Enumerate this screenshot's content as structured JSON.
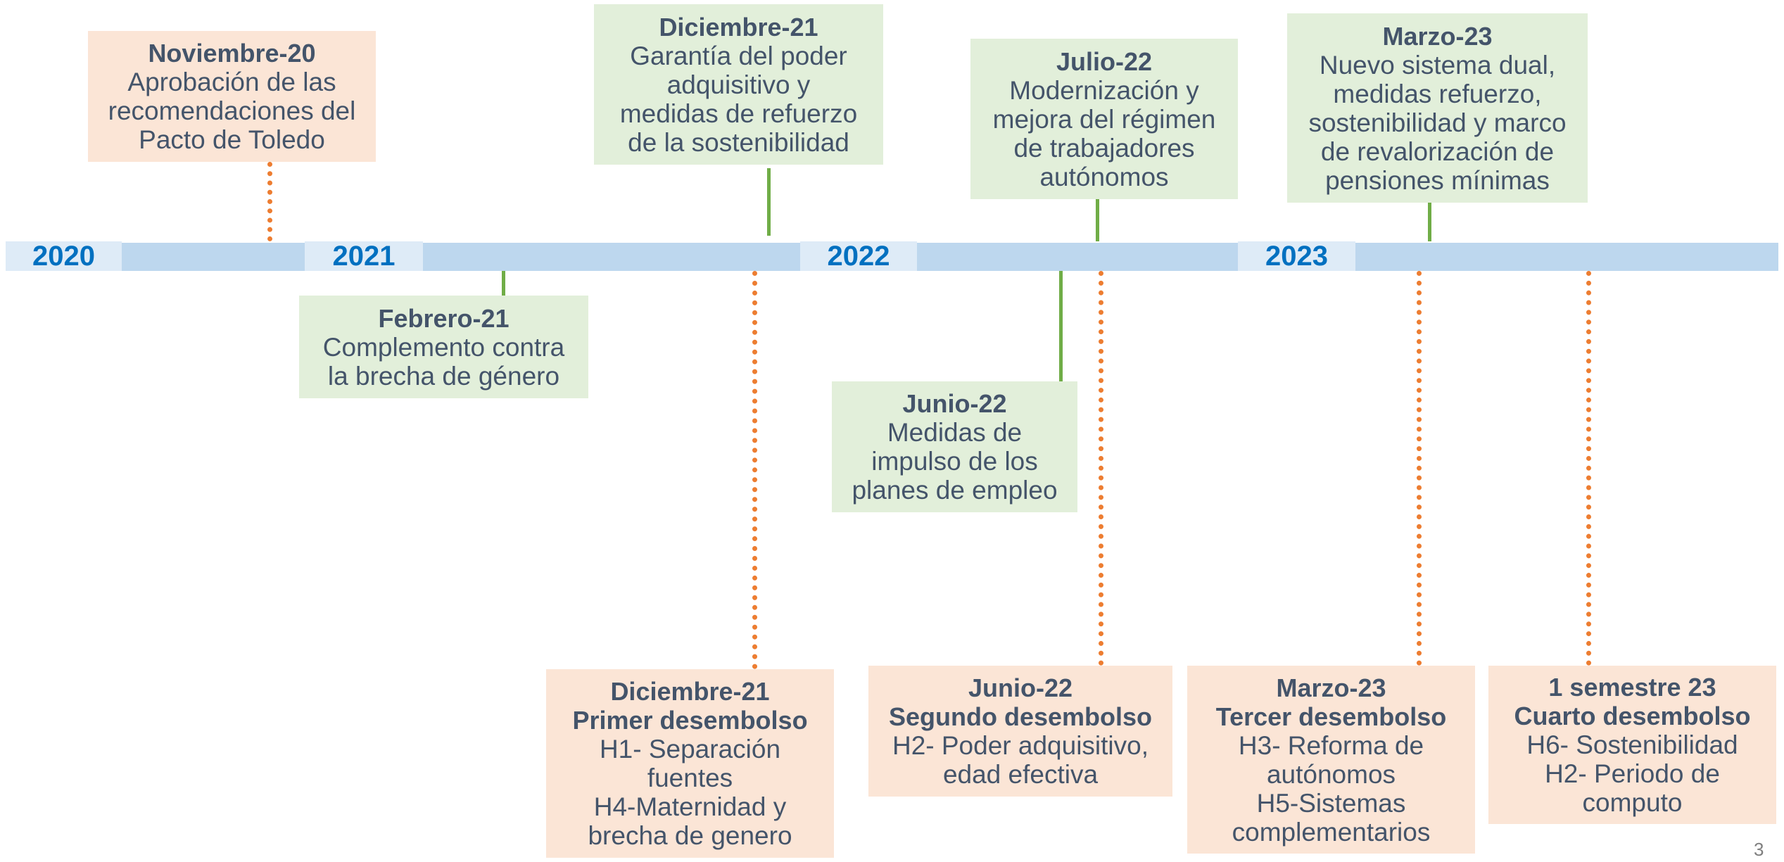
{
  "years": [
    "2020",
    "2021",
    "2022",
    "2023"
  ],
  "events": [
    {
      "heading": [
        "Noviembre-20"
      ],
      "text": [
        "Aprobación de las",
        "recomendaciones del",
        "Pacto de Toledo"
      ]
    },
    {
      "heading": [
        "Diciembre-21"
      ],
      "text": [
        "Garantía del poder",
        "adquisitivo y",
        "medidas de refuerzo",
        "de la sostenibilidad"
      ]
    },
    {
      "heading": [
        "Julio-22"
      ],
      "text": [
        "Modernización y",
        "mejora del régimen",
        "de trabajadores",
        "autónomos"
      ]
    },
    {
      "heading": [
        "Marzo-23"
      ],
      "text": [
        "Nuevo sistema dual,",
        "medidas refuerzo,",
        "sostenibilidad y marco",
        "de revalorización de",
        "pensiones mínimas"
      ]
    },
    {
      "heading": [
        "Febrero-21"
      ],
      "text": [
        "Complemento contra",
        "la brecha de género"
      ]
    },
    {
      "heading": [
        "Junio-22"
      ],
      "text": [
        "Medidas de",
        "impulso de los",
        "planes de empleo"
      ]
    },
    {
      "heading": [
        "Diciembre-21",
        "Primer desembolso"
      ],
      "text": [
        "H1- Separación",
        "fuentes",
        "H4-Maternidad y",
        "brecha de genero"
      ]
    },
    {
      "heading": [
        "Junio-22",
        "Segundo desembolso"
      ],
      "text": [
        "H2- Poder adquisitivo,",
        "edad efectiva"
      ]
    },
    {
      "heading": [
        "Marzo-23",
        "Tercer desembolso"
      ],
      "text": [
        "H3- Reforma de",
        "autónomos",
        "H5-Sistemas",
        "complementarios"
      ]
    },
    {
      "heading": [
        "1 semestre 23",
        "Cuarto desembolso"
      ],
      "text": [
        "H6- Sostenibilidad",
        "H2- Periodo de",
        "computo"
      ]
    }
  ],
  "page_number": "3"
}
